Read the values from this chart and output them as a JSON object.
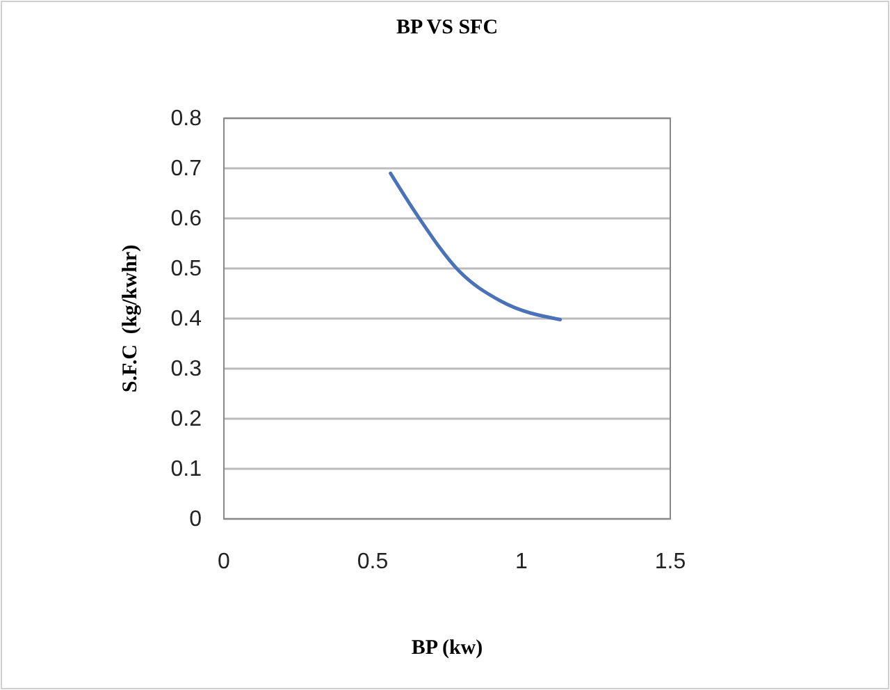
{
  "chart_data": {
    "type": "line",
    "title": "BP VS SFC",
    "xlabel": "BP (kw)",
    "ylabel": "S.F.C  (kg/kwhr)",
    "series": [
      {
        "color": "#4a72b8",
        "x": [
          0.56,
          0.65,
          0.79,
          0.93,
          1.13
        ],
        "values": [
          0.69,
          0.606,
          0.495,
          0.435,
          0.398
        ]
      }
    ],
    "xlim": [
      0,
      1.5
    ],
    "xticks": [
      0,
      0.5,
      1,
      1.5
    ],
    "ylim": [
      0,
      0.8
    ],
    "yticks": [
      0,
      0.1,
      0.2,
      0.3,
      0.4,
      0.5,
      0.6,
      0.7,
      0.8
    ],
    "grid": "y",
    "marker": "none",
    "line_style": "solid"
  }
}
